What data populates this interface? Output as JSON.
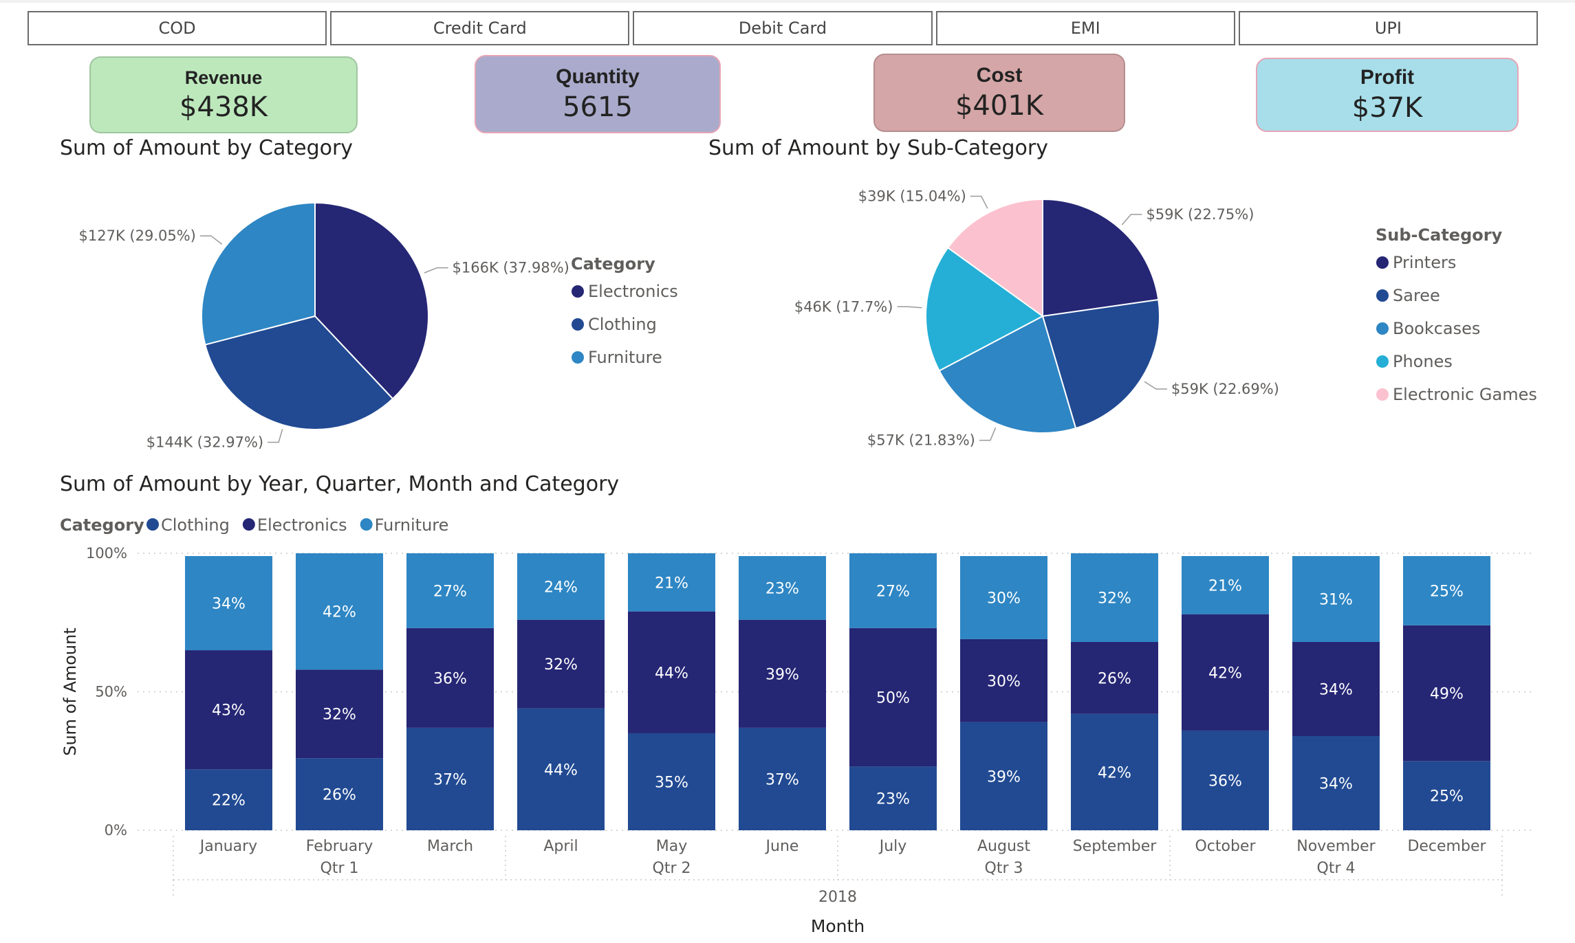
{
  "slicer": {
    "items": [
      "COD",
      "Credit Card",
      "Debit Card",
      "EMI",
      "UPI"
    ]
  },
  "kpis": [
    {
      "label": "Revenue",
      "value": "$438K",
      "color": "#bde8bc"
    },
    {
      "label": "Quantity",
      "value": "5615",
      "color": "#aaabcc"
    },
    {
      "label": "Cost",
      "value": "$401K",
      "color": "#d5a6a7"
    },
    {
      "label": "Profit",
      "value": "$37K",
      "color": "#a7deea"
    }
  ],
  "chart_data": [
    {
      "type": "pie",
      "title": "Sum of Amount by Category",
      "legend_title": "Category",
      "legend_position": "right",
      "slices": [
        {
          "name": "Electronics",
          "value": 166,
          "percent": 37.98,
          "label": "$166K (37.98%)",
          "color": "#252674"
        },
        {
          "name": "Clothing",
          "value": 144,
          "percent": 32.97,
          "label": "$144K (32.97%)",
          "color": "#214a92"
        },
        {
          "name": "Furniture",
          "value": 127,
          "percent": 29.05,
          "label": "$127K (29.05%)",
          "color": "#2e86c4"
        }
      ]
    },
    {
      "type": "pie",
      "title": "Sum of Amount by Sub-Category",
      "legend_title": "Sub-Category",
      "legend_position": "right",
      "slices": [
        {
          "name": "Printers",
          "value": 59,
          "percent": 22.75,
          "label": "$59K (22.75%)",
          "color": "#252674"
        },
        {
          "name": "Saree",
          "value": 59,
          "percent": 22.69,
          "label": "$59K (22.69%)",
          "color": "#214a92"
        },
        {
          "name": "Bookcases",
          "value": 57,
          "percent": 21.83,
          "label": "$57K (21.83%)",
          "color": "#2e86c4"
        },
        {
          "name": "Phones",
          "value": 46,
          "percent": 17.7,
          "label": "$46K (17.7%)",
          "color": "#25afd6"
        },
        {
          "name": "Electronic Games",
          "value": 39,
          "percent": 15.04,
          "label": "$39K (15.04%)",
          "color": "#fcc1cf"
        }
      ]
    },
    {
      "type": "bar",
      "stacked": "percent",
      "title": "Sum of Amount by Year, Quarter, Month and Category",
      "legend_title": "Category",
      "legend_position": "top-left",
      "xlabel": "Month",
      "ylabel": "Sum of Amount",
      "ylim": [
        0,
        100
      ],
      "yticks": [
        "0%",
        "50%",
        "100%"
      ],
      "grid": true,
      "categories": [
        "January",
        "February",
        "March",
        "April",
        "May",
        "June",
        "July",
        "August",
        "September",
        "October",
        "November",
        "December"
      ],
      "quarters": [
        {
          "label": "Qtr 1",
          "months": 3
        },
        {
          "label": "Qtr 2",
          "months": 3
        },
        {
          "label": "Qtr 3",
          "months": 3
        },
        {
          "label": "Qtr 4",
          "months": 3
        }
      ],
      "year": "2018",
      "series": [
        {
          "name": "Clothing",
          "color": "#214a92",
          "values": [
            22,
            26,
            37,
            44,
            35,
            37,
            23,
            39,
            42,
            36,
            34,
            25
          ]
        },
        {
          "name": "Electronics",
          "color": "#252674",
          "values": [
            43,
            32,
            36,
            32,
            44,
            39,
            50,
            30,
            26,
            42,
            34,
            49
          ]
        },
        {
          "name": "Furniture",
          "color": "#2e86c4",
          "values": [
            34,
            42,
            27,
            24,
            21,
            23,
            27,
            30,
            32,
            21,
            31,
            25
          ]
        }
      ]
    }
  ]
}
